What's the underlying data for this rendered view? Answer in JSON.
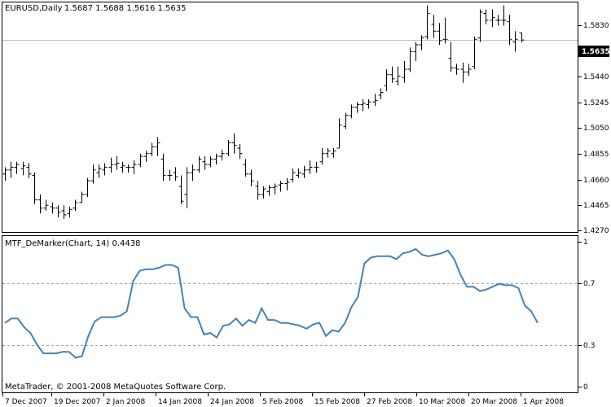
{
  "symbol_label": "EURUSD,Daily",
  "ohlc_text": "1.5687 1.5688 1.5616 1.5635",
  "current_price_label": "1.5635",
  "indicator_label": "MTF_DeMarker(Chart, 14) 0.4438",
  "copyright": "MetaTrader, © 2001-2008 MetaQuotes Software Corp.",
  "price_axis_labels": [
    "1.5830",
    "1.5440",
    "1.5245",
    "1.5050",
    "1.4855",
    "1.4660",
    "1.4465",
    "1.4270"
  ],
  "indicator_axis_labels": [
    "1",
    "0.7",
    "0.3",
    "0"
  ],
  "date_labels": [
    "7 Dec 2007",
    "19 Dec 2007",
    "2 Jan 2008",
    "14 Jan 2008",
    "24 Jan 2008",
    "5 Feb 2008",
    "15 Feb 2008",
    "27 Feb 2008",
    "10 Mar 2008",
    "20 Mar 2008",
    "1 Apr 2008"
  ],
  "colors": {
    "bars": "#000000",
    "indicator_line": "#4682b4",
    "grid_dashed": "#a0a0a0",
    "current_price_line": "#c0c0c0",
    "frame": "#000000",
    "background": "#ffffff"
  },
  "chart_data": [
    {
      "type": "ohlc",
      "ylim": [
        1.423,
        1.5905
      ],
      "current_price": 1.5635,
      "bars": [
        [
          1.465,
          1.47,
          1.46,
          1.468
        ],
        [
          1.468,
          1.474,
          1.462,
          1.47
        ],
        [
          1.47,
          1.474,
          1.465,
          1.472
        ],
        [
          1.469,
          1.474,
          1.464,
          1.471
        ],
        [
          1.47,
          1.473,
          1.462,
          1.465
        ],
        [
          1.464,
          1.466,
          1.443,
          1.446
        ],
        [
          1.446,
          1.45,
          1.436,
          1.44
        ],
        [
          1.44,
          1.446,
          1.438,
          1.442
        ],
        [
          1.441,
          1.444,
          1.436,
          1.44
        ],
        [
          1.44,
          1.442,
          1.433,
          1.437
        ],
        [
          1.438,
          1.442,
          1.432,
          1.435
        ],
        [
          1.436,
          1.441,
          1.433,
          1.439
        ],
        [
          1.44,
          1.446,
          1.438,
          1.444
        ],
        [
          1.444,
          1.452,
          1.444,
          1.45
        ],
        [
          1.45,
          1.462,
          1.448,
          1.46
        ],
        [
          1.46,
          1.472,
          1.458,
          1.468
        ],
        [
          1.466,
          1.472,
          1.462,
          1.469
        ],
        [
          1.468,
          1.473,
          1.464,
          1.47
        ],
        [
          1.47,
          1.477,
          1.466,
          1.472
        ],
        [
          1.472,
          1.478,
          1.468,
          1.473
        ],
        [
          1.47,
          1.474,
          1.466,
          1.471
        ],
        [
          1.47,
          1.472,
          1.466,
          1.47
        ],
        [
          1.47,
          1.475,
          1.465,
          1.472
        ],
        [
          1.472,
          1.48,
          1.47,
          1.478
        ],
        [
          1.478,
          1.482,
          1.474,
          1.48
        ],
        [
          1.48,
          1.488,
          1.478,
          1.485
        ],
        [
          1.485,
          1.492,
          1.478,
          1.488
        ],
        [
          1.476,
          1.48,
          1.46,
          1.464
        ],
        [
          1.464,
          1.468,
          1.46,
          1.464
        ],
        [
          1.466,
          1.47,
          1.46,
          1.463
        ],
        [
          1.456,
          1.464,
          1.443,
          1.445
        ],
        [
          1.45,
          1.47,
          1.44,
          1.466
        ],
        [
          1.466,
          1.472,
          1.46,
          1.468
        ],
        [
          1.468,
          1.478,
          1.466,
          1.476
        ],
        [
          1.474,
          1.478,
          1.468,
          1.472
        ],
        [
          1.472,
          1.478,
          1.47,
          1.476
        ],
        [
          1.476,
          1.48,
          1.472,
          1.478
        ],
        [
          1.478,
          1.483,
          1.475,
          1.48
        ],
        [
          1.48,
          1.49,
          1.478,
          1.488
        ],
        [
          1.488,
          1.495,
          1.48,
          1.486
        ],
        [
          1.484,
          1.487,
          1.476,
          1.48
        ],
        [
          1.472,
          1.476,
          1.463,
          1.465
        ],
        [
          1.465,
          1.468,
          1.456,
          1.46
        ],
        [
          1.456,
          1.46,
          1.446,
          1.45
        ],
        [
          1.45,
          1.456,
          1.447,
          1.454
        ],
        [
          1.452,
          1.457,
          1.449,
          1.455
        ],
        [
          1.455,
          1.458,
          1.45,
          1.456
        ],
        [
          1.457,
          1.46,
          1.452,
          1.458
        ],
        [
          1.458,
          1.462,
          1.453,
          1.459
        ],
        [
          1.461,
          1.469,
          1.459,
          1.466
        ],
        [
          1.464,
          1.469,
          1.462,
          1.466
        ],
        [
          1.465,
          1.471,
          1.462,
          1.468
        ],
        [
          1.468,
          1.475,
          1.465,
          1.47
        ],
        [
          1.47,
          1.474,
          1.466,
          1.47
        ],
        [
          1.474,
          1.484,
          1.472,
          1.48
        ],
        [
          1.48,
          1.484,
          1.477,
          1.482
        ],
        [
          1.48,
          1.484,
          1.477,
          1.482
        ],
        [
          1.484,
          1.506,
          1.484,
          1.501
        ],
        [
          1.5,
          1.51,
          1.498,
          1.508
        ],
        [
          1.508,
          1.516,
          1.506,
          1.514
        ],
        [
          1.514,
          1.518,
          1.51,
          1.516
        ],
        [
          1.516,
          1.52,
          1.511,
          1.517
        ],
        [
          1.516,
          1.52,
          1.513,
          1.518
        ],
        [
          1.518,
          1.524,
          1.515,
          1.519
        ],
        [
          1.523,
          1.528,
          1.52,
          1.525
        ],
        [
          1.53,
          1.542,
          1.526,
          1.538
        ],
        [
          1.538,
          1.544,
          1.532,
          1.535
        ],
        [
          1.533,
          1.544,
          1.53,
          1.537
        ],
        [
          1.536,
          1.548,
          1.532,
          1.542
        ],
        [
          1.542,
          1.558,
          1.54,
          1.555
        ],
        [
          1.555,
          1.562,
          1.548,
          1.56
        ],
        [
          1.56,
          1.567,
          1.556,
          1.565
        ],
        [
          1.566,
          1.589,
          1.564,
          1.583
        ],
        [
          1.575,
          1.582,
          1.565,
          1.57
        ],
        [
          1.57,
          1.576,
          1.56,
          1.563
        ],
        [
          1.564,
          1.58,
          1.561,
          1.564
        ],
        [
          1.55,
          1.562,
          1.54,
          1.543
        ],
        [
          1.543,
          1.546,
          1.538,
          1.542
        ],
        [
          1.542,
          1.547,
          1.532,
          1.54
        ],
        [
          1.54,
          1.546,
          1.537,
          1.542
        ],
        [
          1.544,
          1.566,
          1.542,
          1.564
        ],
        [
          1.565,
          1.586,
          1.562,
          1.584
        ],
        [
          1.583,
          1.586,
          1.575,
          1.578
        ],
        [
          1.578,
          1.586,
          1.573,
          1.58
        ],
        [
          1.578,
          1.582,
          1.574,
          1.578
        ],
        [
          1.578,
          1.589,
          1.574,
          1.578
        ],
        [
          1.577,
          1.582,
          1.56,
          1.564
        ],
        [
          1.562,
          1.57,
          1.555,
          1.564
        ],
        [
          1.5687,
          1.5688,
          1.5616,
          1.5635
        ]
      ]
    },
    {
      "type": "line",
      "ylim": [
        0,
        1
      ],
      "gridlines": [
        0.7,
        0.3
      ],
      "values": [
        0.44,
        0.47,
        0.47,
        0.41,
        0.37,
        0.29,
        0.23,
        0.23,
        0.23,
        0.24,
        0.24,
        0.2,
        0.21,
        0.35,
        0.45,
        0.48,
        0.48,
        0.48,
        0.49,
        0.52,
        0.73,
        0.8,
        0.81,
        0.81,
        0.82,
        0.84,
        0.84,
        0.82,
        0.54,
        0.48,
        0.48,
        0.36,
        0.37,
        0.34,
        0.42,
        0.43,
        0.47,
        0.42,
        0.46,
        0.44,
        0.54,
        0.46,
        0.46,
        0.44,
        0.44,
        0.43,
        0.42,
        0.4,
        0.43,
        0.44,
        0.35,
        0.39,
        0.38,
        0.44,
        0.55,
        0.62,
        0.85,
        0.89,
        0.9,
        0.9,
        0.9,
        0.88,
        0.92,
        0.93,
        0.95,
        0.91,
        0.9,
        0.91,
        0.92,
        0.94,
        0.88,
        0.77,
        0.69,
        0.69,
        0.66,
        0.67,
        0.69,
        0.71,
        0.7,
        0.7,
        0.68,
        0.56,
        0.52,
        0.44
      ]
    }
  ]
}
